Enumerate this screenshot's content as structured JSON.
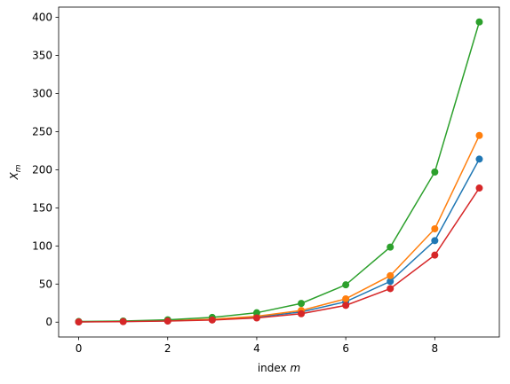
{
  "chart_data": {
    "type": "line",
    "x_label": [
      "index ",
      "m"
    ],
    "y_label": [
      "X",
      "m"
    ],
    "x": [
      0,
      1,
      2,
      3,
      4,
      5,
      6,
      7,
      8,
      9
    ],
    "series": [
      {
        "color": "#1f77b4",
        "values": [
          0.4,
          0.8,
          1.7,
          3.3,
          6.7,
          13.4,
          26.8,
          53.5,
          107,
          214
        ]
      },
      {
        "color": "#ff7f0e",
        "values": [
          0.5,
          1,
          1.9,
          3.8,
          7.7,
          15.3,
          30.6,
          61,
          122.5,
          245
        ]
      },
      {
        "color": "#2ca02c",
        "values": [
          0.8,
          1.5,
          3.1,
          6.2,
          12.3,
          24.6,
          49,
          98.5,
          197,
          394
        ]
      },
      {
        "color": "#d62728",
        "values": [
          0.3,
          0.7,
          1.4,
          2.8,
          5.5,
          11,
          22,
          44,
          88,
          176
        ]
      }
    ],
    "xlim": [
      -0.45,
      9.45
    ],
    "ylim": [
      -19.5,
      413.5
    ],
    "xticks": [
      0,
      2,
      4,
      6,
      8
    ],
    "yticks": [
      0,
      50,
      100,
      150,
      200,
      250,
      300,
      350,
      400
    ],
    "grid": false,
    "marker": "o"
  }
}
